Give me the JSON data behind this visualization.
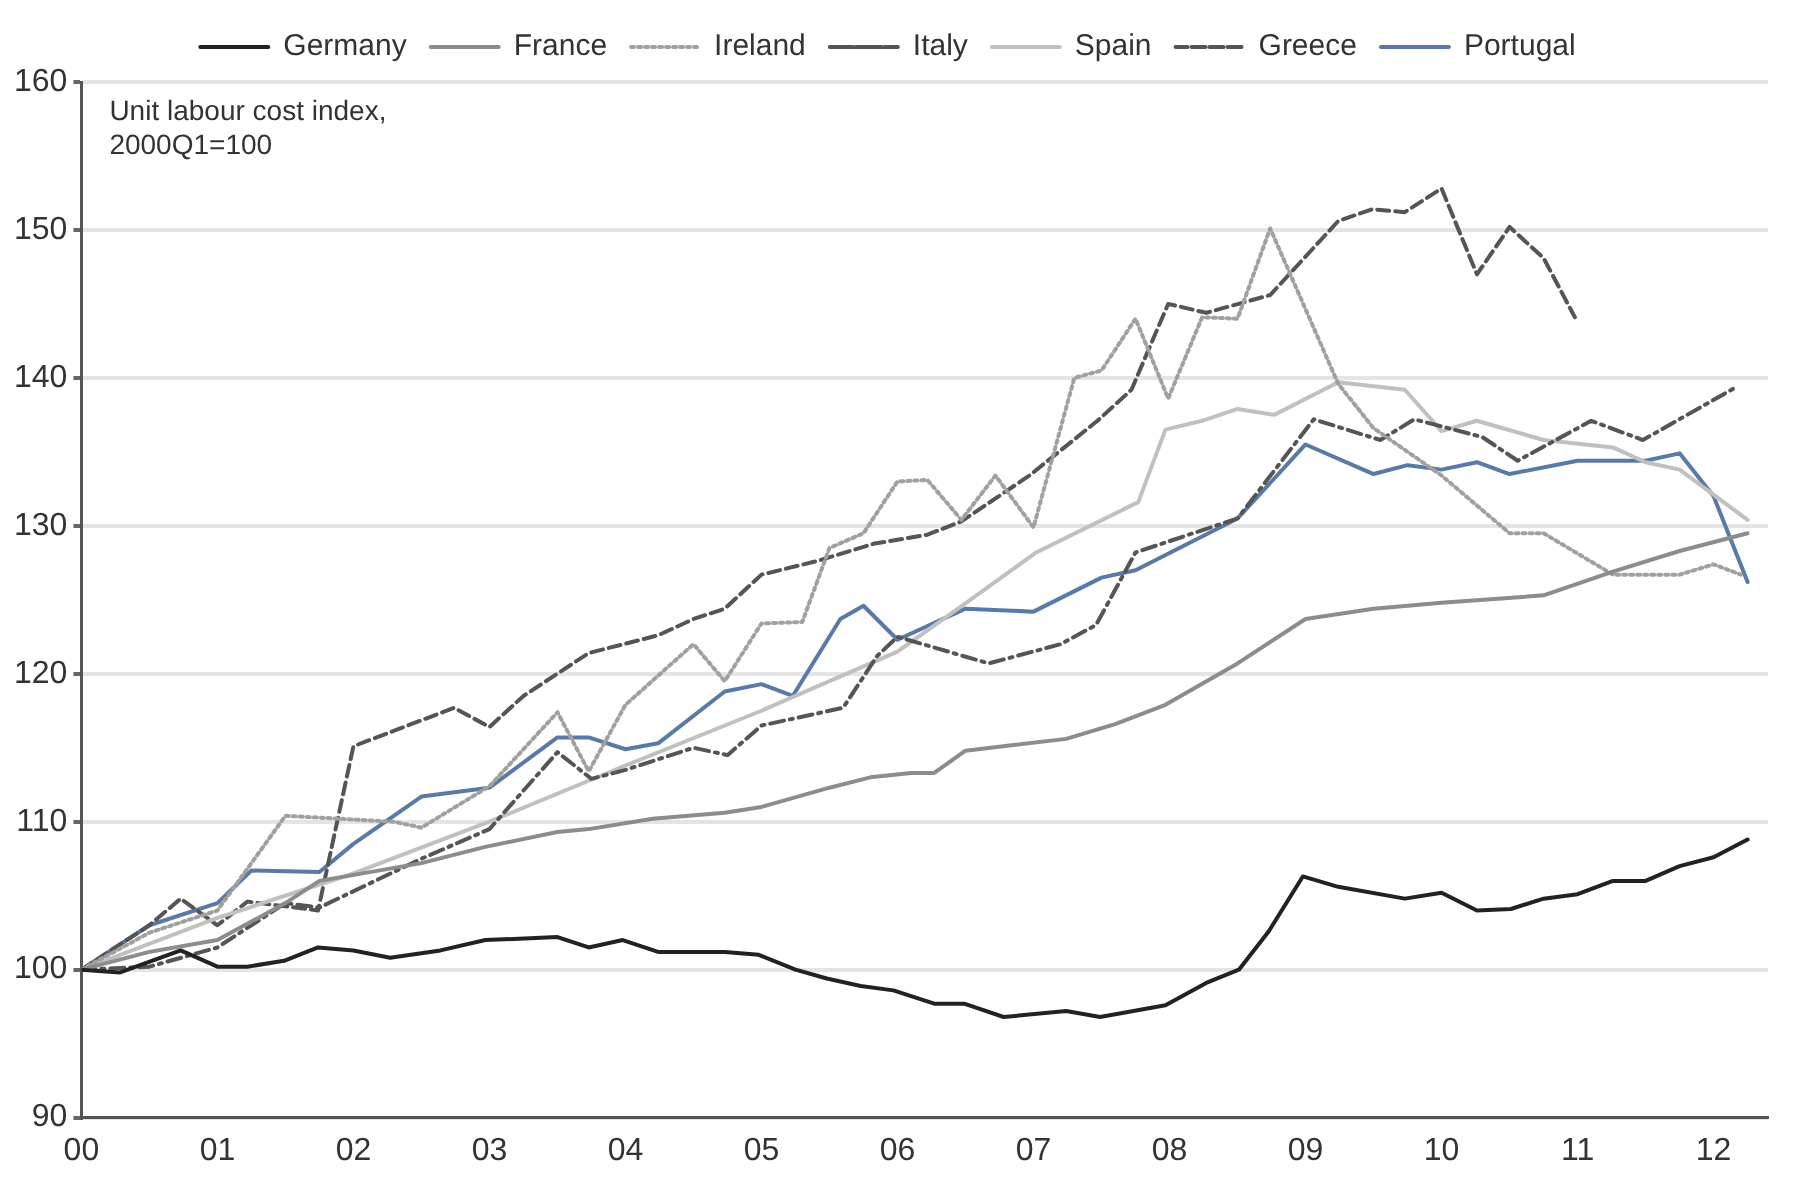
{
  "chart_data": {
    "type": "line",
    "annotations": [
      "Unit labour cost index,\n2000Q1=100"
    ],
    "xlim": [
      2000,
      2012.4
    ],
    "xticks": [
      {
        "value": 2000,
        "label": "00"
      },
      {
        "value": 2001,
        "label": "01"
      },
      {
        "value": 2002,
        "label": "02"
      },
      {
        "value": 2003,
        "label": "03"
      },
      {
        "value": 2004,
        "label": "04"
      },
      {
        "value": 2005,
        "label": "05"
      },
      {
        "value": 2006,
        "label": "06"
      },
      {
        "value": 2007,
        "label": "07"
      },
      {
        "value": 2008,
        "label": "08"
      },
      {
        "value": 2009,
        "label": "09"
      },
      {
        "value": 2010,
        "label": "10"
      },
      {
        "value": 2011,
        "label": "11"
      },
      {
        "value": 2012,
        "label": "12"
      }
    ],
    "ylim": [
      90,
      160
    ],
    "yticks": [
      90,
      100,
      110,
      120,
      130,
      140,
      150,
      160
    ],
    "grid": "y",
    "legend": "top",
    "marker": "none",
    "series": [
      {
        "name": "Germany",
        "color": "#222222",
        "line_style": "solid",
        "x": [
          2000,
          2000.28,
          2000.73,
          2001,
          2001.22,
          2001.49,
          2001.74,
          2002,
          2002.27,
          2002.64,
          2002.97,
          2003.5,
          2003.73,
          2003.98,
          2004.24,
          2004.73,
          2004.98,
          2005.25,
          2005.48,
          2005.73,
          2005.97,
          2006.27,
          2006.49,
          2006.78,
          2007.24,
          2007.49,
          2007.97,
          2008.27,
          2008.51,
          2008.73,
          2008.98,
          2009.24,
          2009.73,
          2010,
          2010.26,
          2010.51,
          2010.75,
          2011,
          2011.26,
          2011.5,
          2011.75,
          2012,
          2012.25
        ],
        "values": [
          100,
          99.8,
          101.3,
          100.2,
          100.2,
          100.6,
          101.5,
          101.3,
          100.8,
          101.3,
          102,
          102.2,
          101.5,
          102,
          101.2,
          101.2,
          101,
          100,
          99.4,
          98.9,
          98.6,
          97.7,
          97.7,
          96.8,
          97.2,
          96.8,
          97.6,
          99.1,
          100,
          102.6,
          106.3,
          105.6,
          104.8,
          105.2,
          104,
          104.1,
          104.8,
          105.1,
          106,
          106,
          107,
          107.6,
          108.8
        ]
      },
      {
        "name": "France",
        "color": "#8c8c8c",
        "line_style": "solid",
        "x": [
          2000,
          2000.5,
          2001,
          2001.5,
          2001.75,
          2002.5,
          2002.97,
          2003.5,
          2003.73,
          2004.2,
          2004.73,
          2005,
          2005.5,
          2005.8,
          2006.1,
          2006.27,
          2006.5,
          2007.24,
          2007.6,
          2007.97,
          2008.5,
          2009,
          2009.5,
          2010,
          2010.75,
          2011.26,
          2011.75,
          2012.25
        ],
        "values": [
          100,
          101.2,
          102,
          104.5,
          106,
          107.2,
          108.3,
          109.3,
          109.5,
          110.2,
          110.6,
          111,
          112.3,
          113,
          113.3,
          113.3,
          114.8,
          115.6,
          116.6,
          117.9,
          120.7,
          123.7,
          124.4,
          124.8,
          125.3,
          126.9,
          128.3,
          129.5
        ]
      },
      {
        "name": "Ireland",
        "color": "#a0a0a0",
        "line_style": "dotted",
        "x": [
          2000,
          2000.5,
          2001,
          2001.5,
          2002.3,
          2002.5,
          2003,
          2003.5,
          2003.73,
          2004,
          2004.5,
          2004.73,
          2005,
          2005.3,
          2005.5,
          2005.75,
          2006,
          2006.22,
          2006.47,
          2006.72,
          2007,
          2007.3,
          2007.5,
          2007.75,
          2007.99,
          2008.24,
          2008.5,
          2008.74,
          2009.24,
          2009.5,
          2010,
          2010.5,
          2010.75,
          2011.26,
          2011.75,
          2012,
          2012.2
        ],
        "values": [
          100,
          102.5,
          104,
          110.4,
          110,
          109.6,
          112.4,
          117.4,
          113.4,
          117.9,
          122,
          119.5,
          123.4,
          123.5,
          128.5,
          129.5,
          133,
          133.1,
          130.4,
          133.4,
          129.9,
          140,
          140.5,
          144,
          138.6,
          144.1,
          144,
          150.1,
          139.6,
          136.6,
          133.4,
          129.5,
          129.5,
          126.7,
          126.7,
          127.4,
          126.7
        ]
      },
      {
        "name": "Italy",
        "color": "#555555",
        "line_style": "dashdot",
        "x": [
          2000,
          2000.5,
          2001,
          2001.5,
          2001.75,
          2002.5,
          2003,
          2003.5,
          2003.75,
          2004,
          2004.5,
          2004.75,
          2005,
          2005.6,
          2005.85,
          2006,
          2006.67,
          2007.2,
          2007.46,
          2007.75,
          2008.5,
          2009.06,
          2009.55,
          2009.8,
          2010.3,
          2010.56,
          2011.1,
          2011.48,
          2012.17
        ],
        "values": [
          100,
          100.2,
          101.5,
          104.5,
          104.2,
          107.5,
          109.5,
          114.7,
          112.9,
          113.5,
          115,
          114.5,
          116.5,
          117.7,
          121.2,
          122.5,
          120.7,
          122,
          123.3,
          128.2,
          130.5,
          137.2,
          135.8,
          137.2,
          136,
          134.4,
          137.1,
          135.8,
          139.4
        ]
      },
      {
        "name": "Spain",
        "color": "#c0c0c0",
        "line_style": "solid",
        "x": [
          2000,
          2001,
          2002,
          2003,
          2004,
          2005,
          2006,
          2006.52,
          2007.02,
          2007.77,
          2007.97,
          2008.24,
          2008.5,
          2008.77,
          2009.24,
          2009.73,
          2010,
          2010.26,
          2010.75,
          2011.26,
          2011.5,
          2011.75,
          2012.25
        ],
        "values": [
          100,
          103.5,
          106.5,
          110,
          113.8,
          117.5,
          121.5,
          124.9,
          128.2,
          131.6,
          136.5,
          137.1,
          137.9,
          137.5,
          139.7,
          139.2,
          136.4,
          137.1,
          135.8,
          135.3,
          134.3,
          133.8,
          130.4
        ]
      },
      {
        "name": "Greece",
        "color": "#555555",
        "line_style": "dashed",
        "x": [
          2000,
          2000.5,
          2000.73,
          2001,
          2001.22,
          2001.74,
          2002,
          2002.74,
          2003,
          2003.25,
          2003.73,
          2004.24,
          2004.5,
          2004.73,
          2005,
          2005.4,
          2005.83,
          2006.22,
          2006.47,
          2006.97,
          2007.47,
          2007.72,
          2007.99,
          2008.27,
          2008.74,
          2009.24,
          2009.49,
          2009.73,
          2010,
          2010.26,
          2010.5,
          2010.75,
          2010.98
        ],
        "values": [
          100,
          103,
          104.8,
          103,
          104.6,
          104,
          115.1,
          117.7,
          116.4,
          118.5,
          121.4,
          122.6,
          123.7,
          124.4,
          126.7,
          127.6,
          128.8,
          129.4,
          130.3,
          133.4,
          137.1,
          139.2,
          145,
          144.4,
          145.6,
          150.6,
          151.4,
          151.2,
          152.8,
          147,
          150.2,
          148.1,
          144.1
        ]
      },
      {
        "name": "Portugal",
        "color": "#5a7aa6",
        "line_style": "solid",
        "x": [
          2000,
          2000.5,
          2001,
          2001.25,
          2001.75,
          2002,
          2002.5,
          2003,
          2003.5,
          2003.73,
          2004,
          2004.24,
          2004.73,
          2005,
          2005.23,
          2005.58,
          2005.75,
          2006,
          2006.5,
          2007,
          2007.5,
          2007.75,
          2008.5,
          2009,
          2009.5,
          2009.75,
          2010,
          2010.26,
          2010.5,
          2011,
          2011.5,
          2011.75,
          2012,
          2012.25
        ],
        "values": [
          100,
          103,
          104.5,
          106.7,
          106.6,
          108.5,
          111.7,
          112.3,
          115.7,
          115.7,
          114.9,
          115.3,
          118.8,
          119.3,
          118.5,
          123.7,
          124.6,
          122.3,
          124.4,
          124.2,
          126.5,
          127,
          130.5,
          135.5,
          133.5,
          134.1,
          133.8,
          134.3,
          133.5,
          134.4,
          134.4,
          134.9,
          132,
          126.2
        ]
      }
    ]
  }
}
